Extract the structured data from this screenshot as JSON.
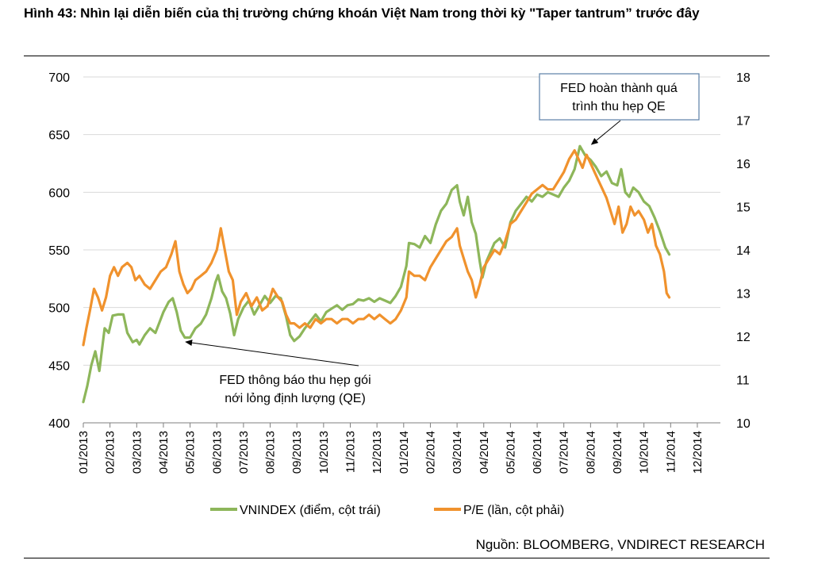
{
  "header": {
    "figure_label": "Hình 43:",
    "title": "Nhìn lại diễn biến của thị trường chứng khoán Việt Nam trong thời kỳ \"Taper tantrum” trước đây"
  },
  "source": "Nguồn: BLOOMBERG, VNDIRECT RESEARCH",
  "colors": {
    "vnindex": "#8db65a",
    "pe": "#f0922d",
    "callout_border": "#5b7fa6"
  },
  "chart_data": {
    "type": "line",
    "title": "Nhìn lại diễn biến của thị trường chứng khoán Việt Nam trong thời kỳ \"Taper tantrum” trước đây",
    "x_categories": [
      "01/2013",
      "02/2013",
      "03/2013",
      "04/2013",
      "05/2013",
      "06/2013",
      "07/2013",
      "08/2013",
      "09/2013",
      "10/2013",
      "11/2013",
      "12/2013",
      "01/2014",
      "02/2014",
      "03/2014",
      "04/2014",
      "05/2014",
      "06/2014",
      "07/2014",
      "08/2014",
      "09/2014",
      "10/2014",
      "11/2014",
      "12/2014"
    ],
    "x_month_index": [
      0,
      1,
      2,
      3,
      4,
      5,
      6,
      7,
      8,
      9,
      10,
      11,
      12,
      13,
      14,
      15,
      16,
      17,
      18,
      19,
      20,
      21,
      22,
      23
    ],
    "y_left": {
      "min": 400,
      "max": 700,
      "ticks": [
        400,
        450,
        500,
        550,
        600,
        650,
        700
      ]
    },
    "y_right": {
      "min": 10,
      "max": 18,
      "ticks": [
        10,
        11,
        12,
        13,
        14,
        15,
        16,
        17,
        18
      ]
    },
    "series": [
      {
        "name": "VNINDEX (điểm, cột trái)",
        "axis": "left",
        "points": [
          [
            0.0,
            418
          ],
          [
            0.15,
            432
          ],
          [
            0.3,
            450
          ],
          [
            0.45,
            462
          ],
          [
            0.6,
            445
          ],
          [
            0.8,
            482
          ],
          [
            0.95,
            478
          ],
          [
            1.1,
            493
          ],
          [
            1.3,
            494
          ],
          [
            1.5,
            494
          ],
          [
            1.65,
            478
          ],
          [
            1.85,
            470
          ],
          [
            2.0,
            472
          ],
          [
            2.1,
            468
          ],
          [
            2.3,
            476
          ],
          [
            2.5,
            482
          ],
          [
            2.7,
            478
          ],
          [
            2.9,
            490
          ],
          [
            3.0,
            496
          ],
          [
            3.2,
            505
          ],
          [
            3.35,
            508
          ],
          [
            3.5,
            496
          ],
          [
            3.65,
            480
          ],
          [
            3.8,
            474
          ],
          [
            4.0,
            474
          ],
          [
            4.2,
            482
          ],
          [
            4.4,
            486
          ],
          [
            4.6,
            494
          ],
          [
            4.8,
            508
          ],
          [
            4.95,
            522
          ],
          [
            5.05,
            528
          ],
          [
            5.2,
            514
          ],
          [
            5.35,
            508
          ],
          [
            5.5,
            495
          ],
          [
            5.65,
            476
          ],
          [
            5.8,
            490
          ],
          [
            6.0,
            500
          ],
          [
            6.2,
            506
          ],
          [
            6.4,
            494
          ],
          [
            6.6,
            502
          ],
          [
            6.8,
            510
          ],
          [
            7.0,
            504
          ],
          [
            7.2,
            510
          ],
          [
            7.4,
            508
          ],
          [
            7.6,
            492
          ],
          [
            7.75,
            476
          ],
          [
            7.9,
            471
          ],
          [
            8.1,
            475
          ],
          [
            8.3,
            482
          ],
          [
            8.5,
            488
          ],
          [
            8.7,
            494
          ],
          [
            8.9,
            488
          ],
          [
            9.1,
            496
          ],
          [
            9.3,
            499
          ],
          [
            9.5,
            502
          ],
          [
            9.7,
            498
          ],
          [
            9.9,
            502
          ],
          [
            10.1,
            503
          ],
          [
            10.3,
            507
          ],
          [
            10.5,
            506
          ],
          [
            10.7,
            508
          ],
          [
            10.9,
            505
          ],
          [
            11.1,
            508
          ],
          [
            11.3,
            506
          ],
          [
            11.5,
            504
          ],
          [
            11.7,
            510
          ],
          [
            11.9,
            518
          ],
          [
            12.1,
            536
          ],
          [
            12.2,
            556
          ],
          [
            12.4,
            555
          ],
          [
            12.6,
            552
          ],
          [
            12.8,
            562
          ],
          [
            13.0,
            556
          ],
          [
            13.2,
            572
          ],
          [
            13.4,
            584
          ],
          [
            13.6,
            590
          ],
          [
            13.8,
            602
          ],
          [
            14.0,
            606
          ],
          [
            14.1,
            592
          ],
          [
            14.25,
            580
          ],
          [
            14.4,
            596
          ],
          [
            14.55,
            574
          ],
          [
            14.7,
            564
          ],
          [
            14.85,
            540
          ],
          [
            14.95,
            526
          ],
          [
            15.1,
            540
          ],
          [
            15.25,
            548
          ],
          [
            15.4,
            556
          ],
          [
            15.6,
            560
          ],
          [
            15.8,
            552
          ],
          [
            16.0,
            574
          ],
          [
            16.2,
            584
          ],
          [
            16.4,
            590
          ],
          [
            16.6,
            596
          ],
          [
            16.8,
            592
          ],
          [
            17.0,
            598
          ],
          [
            17.2,
            596
          ],
          [
            17.4,
            600
          ],
          [
            17.6,
            598
          ],
          [
            17.8,
            596
          ],
          [
            18.0,
            604
          ],
          [
            18.2,
            610
          ],
          [
            18.4,
            620
          ],
          [
            18.6,
            640
          ],
          [
            18.8,
            632
          ],
          [
            19.0,
            628
          ],
          [
            19.2,
            622
          ],
          [
            19.4,
            614
          ],
          [
            19.6,
            618
          ],
          [
            19.8,
            608
          ],
          [
            20.0,
            606
          ],
          [
            20.15,
            620
          ],
          [
            20.3,
            600
          ],
          [
            20.45,
            596
          ],
          [
            20.6,
            604
          ],
          [
            20.8,
            600
          ],
          [
            21.0,
            592
          ],
          [
            21.2,
            588
          ],
          [
            21.4,
            578
          ],
          [
            21.6,
            566
          ],
          [
            21.8,
            552
          ],
          [
            21.95,
            546
          ]
        ]
      },
      {
        "name": "P/E (lần, cột phải)",
        "axis": "right",
        "points": [
          [
            0.0,
            11.8
          ],
          [
            0.12,
            12.2
          ],
          [
            0.25,
            12.6
          ],
          [
            0.4,
            13.1
          ],
          [
            0.55,
            12.9
          ],
          [
            0.7,
            12.6
          ],
          [
            0.85,
            12.9
          ],
          [
            1.0,
            13.4
          ],
          [
            1.15,
            13.6
          ],
          [
            1.3,
            13.4
          ],
          [
            1.45,
            13.6
          ],
          [
            1.65,
            13.7
          ],
          [
            1.8,
            13.6
          ],
          [
            1.95,
            13.3
          ],
          [
            2.1,
            13.4
          ],
          [
            2.3,
            13.2
          ],
          [
            2.5,
            13.1
          ],
          [
            2.7,
            13.3
          ],
          [
            2.9,
            13.5
          ],
          [
            3.1,
            13.6
          ],
          [
            3.3,
            13.9
          ],
          [
            3.45,
            14.2
          ],
          [
            3.6,
            13.5
          ],
          [
            3.75,
            13.2
          ],
          [
            3.9,
            13.0
          ],
          [
            4.05,
            13.1
          ],
          [
            4.2,
            13.3
          ],
          [
            4.4,
            13.4
          ],
          [
            4.6,
            13.5
          ],
          [
            4.8,
            13.7
          ],
          [
            5.0,
            14.0
          ],
          [
            5.15,
            14.5
          ],
          [
            5.3,
            14.0
          ],
          [
            5.45,
            13.5
          ],
          [
            5.6,
            13.3
          ],
          [
            5.75,
            12.5
          ],
          [
            5.9,
            12.8
          ],
          [
            6.1,
            13.0
          ],
          [
            6.3,
            12.7
          ],
          [
            6.5,
            12.9
          ],
          [
            6.7,
            12.6
          ],
          [
            6.9,
            12.7
          ],
          [
            7.1,
            13.1
          ],
          [
            7.3,
            12.9
          ],
          [
            7.45,
            12.8
          ],
          [
            7.6,
            12.5
          ],
          [
            7.75,
            12.3
          ],
          [
            7.9,
            12.3
          ],
          [
            8.1,
            12.2
          ],
          [
            8.3,
            12.3
          ],
          [
            8.5,
            12.2
          ],
          [
            8.7,
            12.4
          ],
          [
            8.9,
            12.3
          ],
          [
            9.1,
            12.4
          ],
          [
            9.3,
            12.4
          ],
          [
            9.5,
            12.3
          ],
          [
            9.7,
            12.4
          ],
          [
            9.9,
            12.4
          ],
          [
            10.1,
            12.3
          ],
          [
            10.3,
            12.4
          ],
          [
            10.5,
            12.4
          ],
          [
            10.7,
            12.5
          ],
          [
            10.9,
            12.4
          ],
          [
            11.1,
            12.5
          ],
          [
            11.3,
            12.4
          ],
          [
            11.5,
            12.3
          ],
          [
            11.7,
            12.4
          ],
          [
            11.9,
            12.6
          ],
          [
            12.1,
            12.9
          ],
          [
            12.2,
            13.5
          ],
          [
            12.4,
            13.4
          ],
          [
            12.6,
            13.4
          ],
          [
            12.8,
            13.3
          ],
          [
            13.0,
            13.6
          ],
          [
            13.2,
            13.8
          ],
          [
            13.4,
            14.0
          ],
          [
            13.6,
            14.2
          ],
          [
            13.8,
            14.3
          ],
          [
            14.0,
            14.5
          ],
          [
            14.1,
            14.1
          ],
          [
            14.25,
            13.8
          ],
          [
            14.4,
            13.5
          ],
          [
            14.55,
            13.3
          ],
          [
            14.7,
            12.9
          ],
          [
            14.85,
            13.2
          ],
          [
            15.0,
            13.6
          ],
          [
            15.2,
            13.8
          ],
          [
            15.4,
            14.0
          ],
          [
            15.6,
            13.9
          ],
          [
            15.8,
            14.2
          ],
          [
            16.0,
            14.6
          ],
          [
            16.2,
            14.7
          ],
          [
            16.4,
            14.9
          ],
          [
            16.6,
            15.1
          ],
          [
            16.8,
            15.3
          ],
          [
            17.0,
            15.4
          ],
          [
            17.2,
            15.5
          ],
          [
            17.4,
            15.4
          ],
          [
            17.6,
            15.4
          ],
          [
            17.8,
            15.6
          ],
          [
            18.0,
            15.8
          ],
          [
            18.2,
            16.1
          ],
          [
            18.4,
            16.3
          ],
          [
            18.55,
            16.1
          ],
          [
            18.7,
            15.9
          ],
          [
            18.85,
            16.2
          ],
          [
            19.0,
            16.0
          ],
          [
            19.15,
            15.8
          ],
          [
            19.3,
            15.6
          ],
          [
            19.45,
            15.4
          ],
          [
            19.6,
            15.2
          ],
          [
            19.75,
            14.9
          ],
          [
            19.9,
            14.6
          ],
          [
            20.05,
            15.0
          ],
          [
            20.2,
            14.4
          ],
          [
            20.35,
            14.6
          ],
          [
            20.5,
            15.0
          ],
          [
            20.65,
            14.8
          ],
          [
            20.8,
            14.9
          ],
          [
            21.0,
            14.7
          ],
          [
            21.15,
            14.4
          ],
          [
            21.3,
            14.6
          ],
          [
            21.45,
            14.1
          ],
          [
            21.6,
            13.9
          ],
          [
            21.75,
            13.5
          ],
          [
            21.85,
            13.0
          ],
          [
            21.95,
            12.9
          ]
        ]
      }
    ],
    "annotations": [
      {
        "id": "qe_announce",
        "lines": [
          "FED thông báo thu hẹp gói",
          "nới lỏng định lượng (QE)"
        ],
        "arrow_target": {
          "x_month": 3.6,
          "y_left": 475
        }
      },
      {
        "id": "qe_complete",
        "lines": [
          "FED hoàn thành quá",
          "trình thu hẹp QE"
        ],
        "arrow_target": {
          "x_month": 18.8,
          "y_left": 636
        }
      }
    ],
    "legend_position": "bottom-center",
    "xlabel": "",
    "ylabel_left": "",
    "ylabel_right": ""
  }
}
